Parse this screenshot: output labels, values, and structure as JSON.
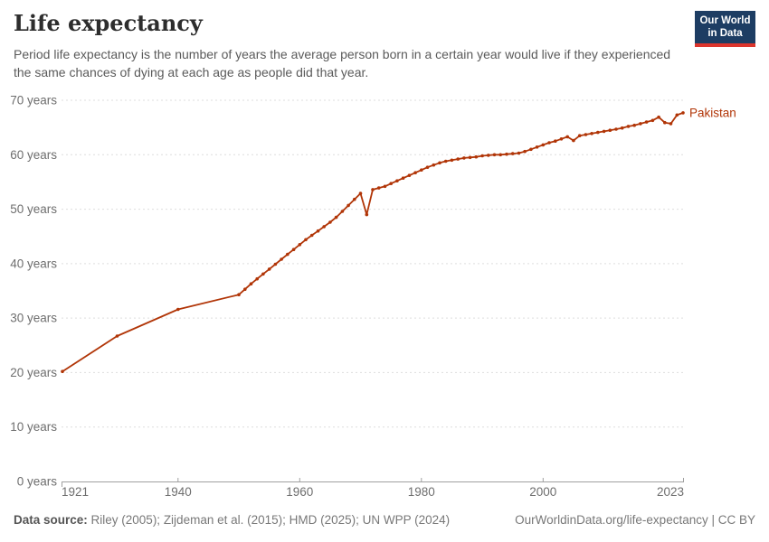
{
  "header": {
    "title": "Life expectancy",
    "subtitle": "Period life expectancy is the number of years the average person born in a certain year would live if they experienced the same chances of dying at each age as people did that year.",
    "logo": {
      "line1": "Our World",
      "line2": "in Data"
    }
  },
  "chart_data": {
    "type": "line",
    "title": "Life expectancy",
    "xlabel": "",
    "ylabel": "",
    "xlim": [
      1921,
      2023
    ],
    "ylim": [
      0,
      70
    ],
    "x_ticks": [
      1921,
      1940,
      1960,
      1980,
      2000,
      2023
    ],
    "y_ticks": [
      0,
      10,
      20,
      30,
      40,
      50,
      60,
      70
    ],
    "y_tick_suffix": " years",
    "grid": true,
    "legend_position": "end-of-line",
    "series": [
      {
        "name": "Pakistan",
        "color": "#b13507",
        "points": [
          [
            1921,
            20.2
          ],
          [
            1930,
            26.7
          ],
          [
            1940,
            31.6
          ],
          [
            1950,
            34.3
          ],
          [
            1951,
            35.3
          ],
          [
            1952,
            36.3
          ],
          [
            1953,
            37.2
          ],
          [
            1954,
            38.1
          ],
          [
            1955,
            39.0
          ],
          [
            1956,
            39.9
          ],
          [
            1957,
            40.8
          ],
          [
            1958,
            41.7
          ],
          [
            1959,
            42.6
          ],
          [
            1960,
            43.5
          ],
          [
            1961,
            44.4
          ],
          [
            1962,
            45.2
          ],
          [
            1963,
            46.0
          ],
          [
            1964,
            46.8
          ],
          [
            1965,
            47.6
          ],
          [
            1966,
            48.5
          ],
          [
            1967,
            49.6
          ],
          [
            1968,
            50.7
          ],
          [
            1969,
            51.8
          ],
          [
            1970,
            52.9
          ],
          [
            1971,
            49.0
          ],
          [
            1972,
            53.6
          ],
          [
            1973,
            53.9
          ],
          [
            1974,
            54.2
          ],
          [
            1975,
            54.7
          ],
          [
            1976,
            55.2
          ],
          [
            1977,
            55.7
          ],
          [
            1978,
            56.2
          ],
          [
            1979,
            56.7
          ],
          [
            1980,
            57.2
          ],
          [
            1981,
            57.7
          ],
          [
            1982,
            58.1
          ],
          [
            1983,
            58.5
          ],
          [
            1984,
            58.8
          ],
          [
            1985,
            59.0
          ],
          [
            1986,
            59.2
          ],
          [
            1987,
            59.4
          ],
          [
            1988,
            59.5
          ],
          [
            1989,
            59.6
          ],
          [
            1990,
            59.8
          ],
          [
            1991,
            59.9
          ],
          [
            1992,
            60.0
          ],
          [
            1993,
            60.0
          ],
          [
            1994,
            60.1
          ],
          [
            1995,
            60.2
          ],
          [
            1996,
            60.3
          ],
          [
            1997,
            60.6
          ],
          [
            1998,
            61.0
          ],
          [
            1999,
            61.4
          ],
          [
            2000,
            61.8
          ],
          [
            2001,
            62.2
          ],
          [
            2002,
            62.5
          ],
          [
            2003,
            62.9
          ],
          [
            2004,
            63.3
          ],
          [
            2005,
            62.6
          ],
          [
            2006,
            63.5
          ],
          [
            2007,
            63.7
          ],
          [
            2008,
            63.9
          ],
          [
            2009,
            64.1
          ],
          [
            2010,
            64.3
          ],
          [
            2011,
            64.5
          ],
          [
            2012,
            64.7
          ],
          [
            2013,
            64.9
          ],
          [
            2014,
            65.2
          ],
          [
            2015,
            65.4
          ],
          [
            2016,
            65.7
          ],
          [
            2017,
            66.0
          ],
          [
            2018,
            66.3
          ],
          [
            2019,
            66.9
          ],
          [
            2020,
            65.9
          ],
          [
            2021,
            65.7
          ],
          [
            2022,
            67.3
          ],
          [
            2023,
            67.7
          ]
        ]
      }
    ]
  },
  "footer": {
    "source_label": "Data source:",
    "source_text": " Riley (2005); Zijdeman et al. (2015); HMD (2025); UN WPP (2024)",
    "credit": "OurWorldinData.org/life-expectancy | CC BY"
  },
  "colors": {
    "line": "#b13507",
    "grid": "#dddddd",
    "axis": "#a0a0a0",
    "tick_label": "#6e6e6e",
    "logo_bg": "#1d3d63",
    "logo_stripe": "#dc352d"
  }
}
